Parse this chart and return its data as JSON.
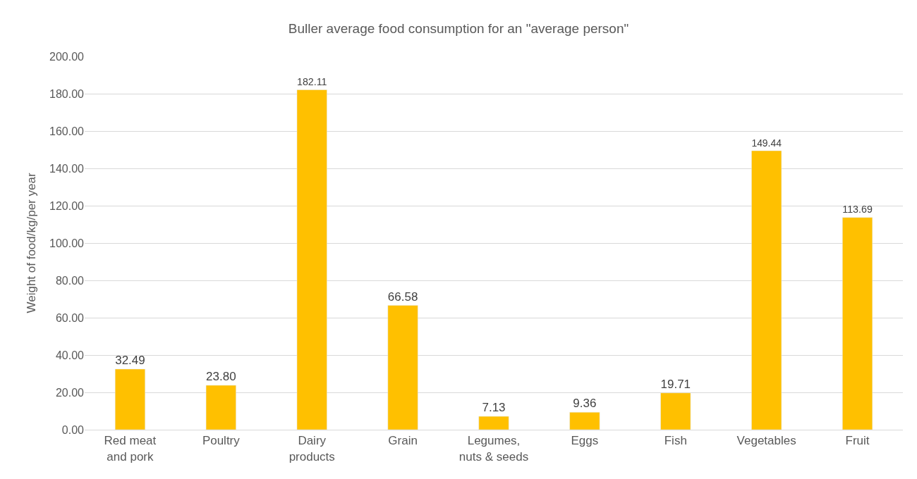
{
  "chart_data": {
    "type": "bar",
    "title": "Buller average food consumption for an \"average person\"",
    "ylabel": "Weight of food/kg/per year",
    "categories": [
      "Red meat\nand pork",
      "Poultry",
      "Dairy\nproducts",
      "Grain",
      "Legumes,\nnuts & seeds",
      "Eggs",
      "Fish",
      "Vegetables",
      "Fruit"
    ],
    "values": [
      32.49,
      23.8,
      182.11,
      66.58,
      7.13,
      9.36,
      19.71,
      149.44,
      113.69
    ],
    "color": "#ffc000",
    "ylim": [
      0,
      200
    ],
    "yticks": [
      {
        "value": 0,
        "label": "0.00"
      },
      {
        "value": 20,
        "label": "20.00"
      },
      {
        "value": 40,
        "label": "40.00"
      },
      {
        "value": 60,
        "label": "60.00"
      },
      {
        "value": 80,
        "label": "80.00"
      },
      {
        "value": 100,
        "label": "100.00"
      },
      {
        "value": 120,
        "label": "120.00"
      },
      {
        "value": 140,
        "label": "140.00"
      },
      {
        "value": 160,
        "label": "160.00"
      },
      {
        "value": 180,
        "label": "180.00"
      },
      {
        "value": 200,
        "label": "200.00"
      }
    ],
    "value_labels": [
      "32.49",
      "23.80",
      "182.11",
      "66.58",
      "7.13",
      "9.36",
      "19.71",
      "149.44",
      "113.69"
    ],
    "grid": "y",
    "legend": false
  }
}
